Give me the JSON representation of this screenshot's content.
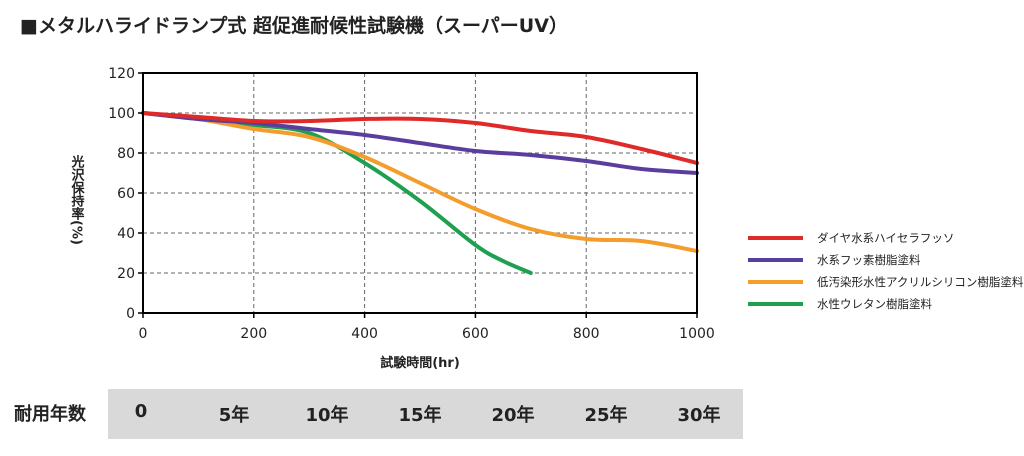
{
  "page_title": "■メタルハライドランプ式 超促進耐候性試験機（スーパーUV）",
  "chart_data": {
    "type": "line",
    "title": "■メタルハライドランプ式 超促進耐候性試験機（スーパーUV）",
    "xlabel": "試験時間(hr)",
    "ylabel": "光沢保持率(%)",
    "xlim": [
      0,
      1000
    ],
    "ylim": [
      0,
      120
    ],
    "x_ticks": [
      0,
      200,
      400,
      600,
      800,
      1000
    ],
    "y_ticks": [
      0,
      20,
      40,
      60,
      80,
      100,
      120
    ],
    "x_tick_labels": [
      "0",
      "200",
      "400",
      "600",
      "800",
      "1000"
    ],
    "y_tick_labels": [
      "0",
      "20",
      "40",
      "60",
      "80",
      "100",
      "120"
    ],
    "grid": true,
    "legend_position": "right",
    "series": [
      {
        "name": "ダイヤ水系ハイセラフッソ",
        "color": "#e02a2a",
        "x": [
          0,
          100,
          200,
          300,
          400,
          500,
          600,
          700,
          800,
          900,
          1000
        ],
        "y": [
          100,
          98,
          96,
          96,
          97,
          97,
          95,
          91,
          88,
          82,
          75
        ]
      },
      {
        "name": "水系フッ素樹脂塗料",
        "color": "#5a3e9e",
        "x": [
          0,
          100,
          200,
          300,
          400,
          500,
          600,
          700,
          800,
          900,
          1000
        ],
        "y": [
          100,
          97,
          95,
          92,
          89,
          85,
          81,
          79,
          76,
          72,
          70
        ]
      },
      {
        "name": "低汚染形水性アクリルシリコン樹脂塗料",
        "color": "#f49c2c",
        "x": [
          0,
          100,
          200,
          300,
          400,
          500,
          600,
          700,
          800,
          900,
          1000
        ],
        "y": [
          100,
          97,
          92,
          88,
          78,
          65,
          52,
          42,
          37,
          36,
          31
        ]
      },
      {
        "name": "水性ウレタン樹脂塗料",
        "color": "#1fa051",
        "x": [
          0,
          100,
          200,
          300,
          400,
          500,
          600,
          650,
          700
        ],
        "y": [
          100,
          97,
          94,
          90,
          75,
          56,
          34,
          26,
          20
        ]
      }
    ]
  },
  "durability": {
    "label": "耐用年数",
    "years": [
      "0",
      "5年",
      "10年",
      "15年",
      "20年",
      "25年",
      "30年"
    ]
  }
}
